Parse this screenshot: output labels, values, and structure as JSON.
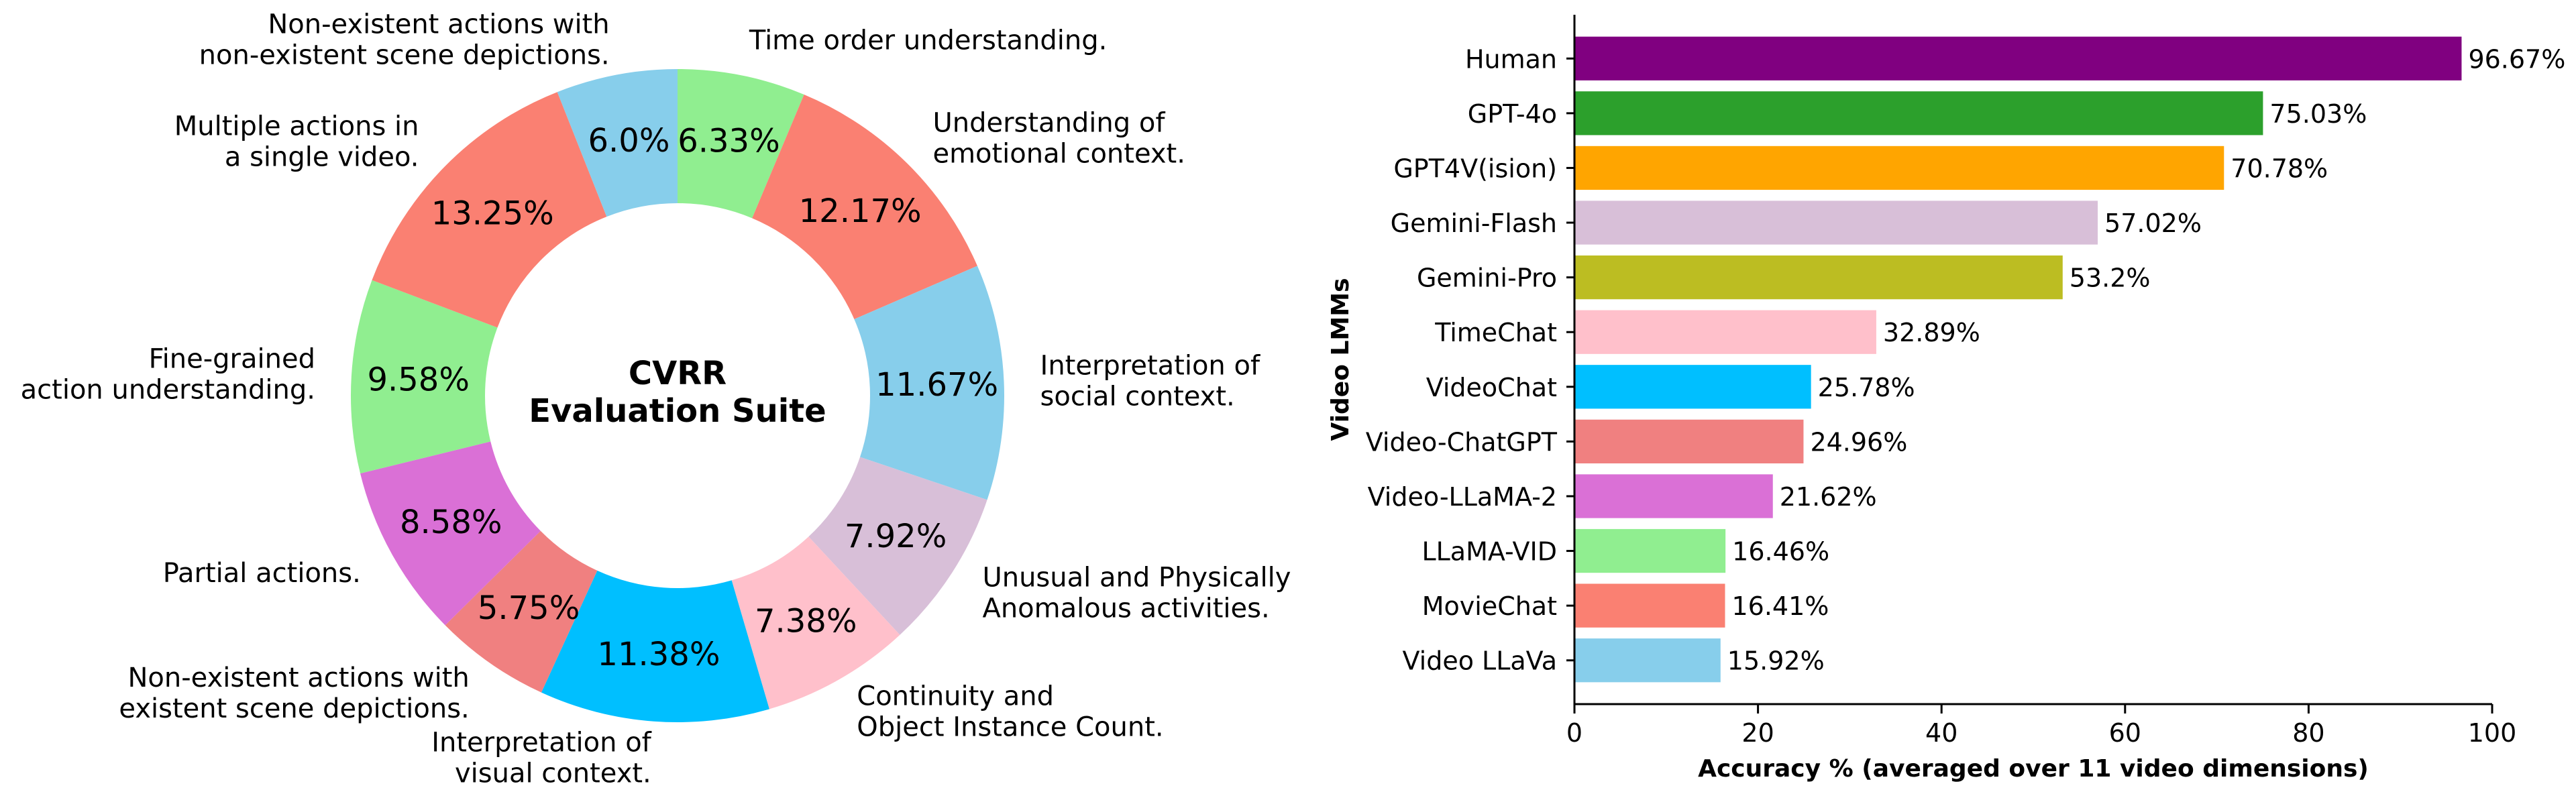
{
  "chart_data": [
    {
      "type": "pie",
      "variant": "donut",
      "center_title": [
        "CVRR",
        "Evaluation Suite"
      ],
      "slices": [
        {
          "label": [
            "Time order understanding."
          ],
          "value": 6.33,
          "pct_label": "6.33%",
          "color": "#90ee90"
        },
        {
          "label": [
            "Understanding of",
            "emotional context."
          ],
          "value": 12.17,
          "pct_label": "12.17%",
          "color": "#fa8072"
        },
        {
          "label": [
            "Interpretation of",
            "social context."
          ],
          "value": 11.67,
          "pct_label": "11.67%",
          "color": "#87ceeb"
        },
        {
          "label": [
            "Unusual and Physically",
            "Anomalous activities."
          ],
          "value": 7.92,
          "pct_label": "7.92%",
          "color": "#d8bfd8"
        },
        {
          "label": [
            "Continuity and",
            "Object Instance Count."
          ],
          "value": 7.38,
          "pct_label": "7.38%",
          "color": "#ffc0cb"
        },
        {
          "label": [
            "Interpretation of",
            "visual context."
          ],
          "value": 11.38,
          "pct_label": "11.38%",
          "color": "#00bfff"
        },
        {
          "label": [
            "Non-existent actions with",
            "existent scene depictions."
          ],
          "value": 5.75,
          "pct_label": "5.75%",
          "color": "#f08080"
        },
        {
          "label": [
            "Partial actions."
          ],
          "value": 8.58,
          "pct_label": "8.58%",
          "color": "#da70d6"
        },
        {
          "label": [
            "Fine-grained",
            "action understanding."
          ],
          "value": 9.58,
          "pct_label": "9.58%",
          "color": "#90ee90"
        },
        {
          "label": [
            "Multiple actions in",
            "a single video."
          ],
          "value": 13.25,
          "pct_label": "13.25%",
          "color": "#fa8072"
        },
        {
          "label": [
            "Non-existent actions with",
            "non-existent scene depictions."
          ],
          "value": 6.0,
          "pct_label": "6.0%",
          "color": "#87ceeb"
        }
      ]
    },
    {
      "type": "bar",
      "orientation": "horizontal",
      "ylabel": "Video LMMs",
      "xlabel": "Accuracy % (averaged over 11 video dimensions)",
      "xlim": [
        0,
        100
      ],
      "xticks": [
        "0",
        "20",
        "40",
        "60",
        "80",
        "100"
      ],
      "grid": false,
      "bars": [
        {
          "category": "Human",
          "value": 96.67,
          "value_label": "96.67%",
          "color": "#800080"
        },
        {
          "category": "GPT-4o",
          "value": 75.03,
          "value_label": "75.03%",
          "color": "#2ca02c"
        },
        {
          "category": "GPT4V(ision)",
          "value": 70.78,
          "value_label": "70.78%",
          "color": "#ffa500"
        },
        {
          "category": "Gemini-Flash",
          "value": 57.02,
          "value_label": "57.02%",
          "color": "#d8bfd8"
        },
        {
          "category": "Gemini-Pro",
          "value": 53.2,
          "value_label": "53.2%",
          "color": "#bcbd22"
        },
        {
          "category": "TimeChat",
          "value": 32.89,
          "value_label": "32.89%",
          "color": "#ffc0cb"
        },
        {
          "category": "VideoChat",
          "value": 25.78,
          "value_label": "25.78%",
          "color": "#00bfff"
        },
        {
          "category": "Video-ChatGPT",
          "value": 24.96,
          "value_label": "24.96%",
          "color": "#f08080"
        },
        {
          "category": "Video-LLaMA-2",
          "value": 21.62,
          "value_label": "21.62%",
          "color": "#da70d6"
        },
        {
          "category": "LLaMA-VID",
          "value": 16.46,
          "value_label": "16.46%",
          "color": "#90ee90"
        },
        {
          "category": "MovieChat",
          "value": 16.41,
          "value_label": "16.41%",
          "color": "#fa8072"
        },
        {
          "category": "Video LLaVa",
          "value": 15.92,
          "value_label": "15.92%",
          "color": "#87ceeb"
        }
      ]
    }
  ]
}
